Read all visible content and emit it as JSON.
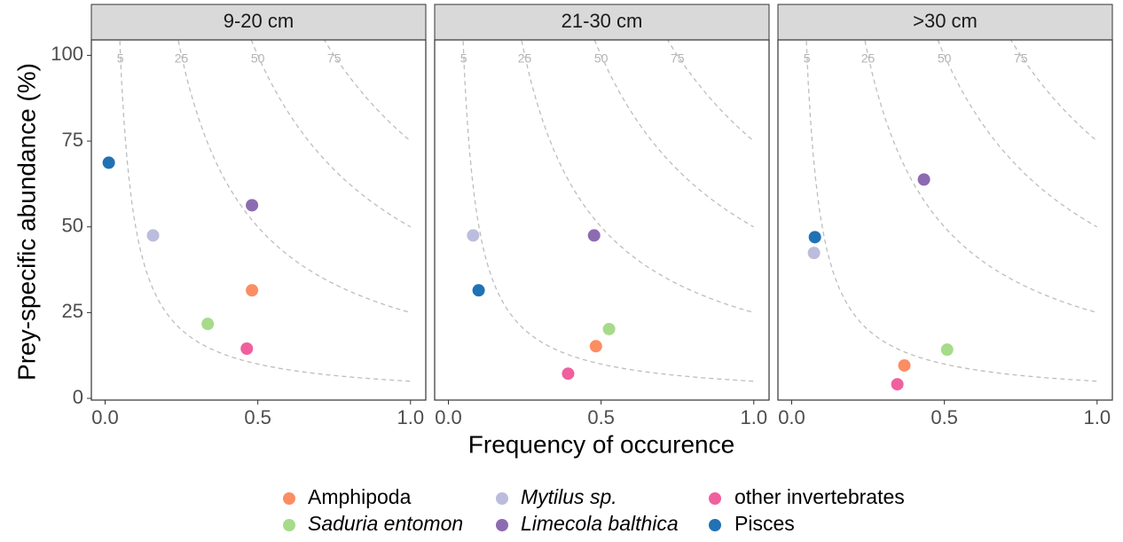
{
  "x_label": "Frequency of occurence",
  "y_label": "Prey-specific abundance (%)",
  "chart_data": [
    {
      "type": "scatter",
      "title": "9-20 cm",
      "xlim": [
        -0.045,
        1.05
      ],
      "ylim": [
        -0.5,
        104.5
      ],
      "xticks": [
        {
          "value": 0,
          "label": "0.0"
        },
        {
          "value": 0.5,
          "label": "0.5"
        },
        {
          "value": 1,
          "label": "1.0"
        }
      ],
      "yticks": [
        0,
        25,
        50,
        75,
        100
      ],
      "isolines": [
        5,
        25,
        50,
        75
      ],
      "series": [
        {
          "name": "Amphipoda",
          "color": "#fc8d62",
          "x": [
            0.481
          ],
          "values": [
            31.5
          ]
        },
        {
          "name": "Saduria entomon",
          "color": "#a6db8a",
          "italic": true,
          "x": [
            0.336
          ],
          "values": [
            21.7
          ]
        },
        {
          "name": "Mytilus sp.",
          "color": "#bcbddc",
          "italic": true,
          "x": [
            0.157
          ],
          "values": [
            47.5
          ]
        },
        {
          "name": "Limecola balthica",
          "color": "#8c6bb1",
          "italic": true,
          "x": [
            0.481
          ],
          "values": [
            56.3
          ]
        },
        {
          "name": "other invertebrates",
          "color": "#f0609e",
          "x": [
            0.464
          ],
          "values": [
            14.5
          ]
        },
        {
          "name": "Pisces",
          "color": "#2171b5",
          "x": [
            0.012
          ],
          "values": [
            68.7
          ]
        }
      ]
    },
    {
      "type": "scatter",
      "title": "21-30 cm",
      "xlim": [
        -0.045,
        1.05
      ],
      "ylim": [
        -0.5,
        104.5
      ],
      "xticks": [
        {
          "value": 0,
          "label": "0.0"
        },
        {
          "value": 0.5,
          "label": "0.5"
        },
        {
          "value": 1,
          "label": "1.0"
        }
      ],
      "isolines": [
        5,
        25,
        50,
        75
      ],
      "series": [
        {
          "name": "Amphipoda",
          "color": "#fc8d62",
          "x": [
            0.483
          ],
          "values": [
            15.2
          ]
        },
        {
          "name": "Saduria entomon",
          "color": "#a6db8a",
          "italic": true,
          "x": [
            0.526
          ],
          "values": [
            20.2
          ]
        },
        {
          "name": "Mytilus sp.",
          "color": "#bcbddc",
          "italic": true,
          "x": [
            0.081
          ],
          "values": [
            47.5
          ]
        },
        {
          "name": "Limecola balthica",
          "color": "#8c6bb1",
          "italic": true,
          "x": [
            0.477
          ],
          "values": [
            47.5
          ]
        },
        {
          "name": "other invertebrates",
          "color": "#f0609e",
          "x": [
            0.392
          ],
          "values": [
            7.2
          ]
        },
        {
          "name": "Pisces",
          "color": "#2171b5",
          "x": [
            0.099
          ],
          "values": [
            31.5
          ]
        }
      ]
    },
    {
      "type": "scatter",
      "title": ">30 cm",
      "xlim": [
        -0.045,
        1.05
      ],
      "ylim": [
        -0.5,
        104.5
      ],
      "xticks": [
        {
          "value": 0,
          "label": "0.0"
        },
        {
          "value": 0.5,
          "label": "0.5"
        },
        {
          "value": 1,
          "label": "1.0"
        }
      ],
      "isolines": [
        5,
        25,
        50,
        75
      ],
      "series": [
        {
          "name": "Amphipoda",
          "color": "#fc8d62",
          "x": [
            0.369
          ],
          "values": [
            9.6
          ]
        },
        {
          "name": "Saduria entomon",
          "color": "#a6db8a",
          "italic": true,
          "x": [
            0.509
          ],
          "values": [
            14.2
          ]
        },
        {
          "name": "Mytilus sp.",
          "color": "#bcbddc",
          "italic": true,
          "x": [
            0.073
          ],
          "values": [
            42.4
          ]
        },
        {
          "name": "Limecola balthica",
          "color": "#8c6bb1",
          "italic": true,
          "x": [
            0.433
          ],
          "values": [
            63.8
          ]
        },
        {
          "name": "other invertebrates",
          "color": "#f0609e",
          "x": [
            0.346
          ],
          "values": [
            4.1
          ]
        },
        {
          "name": "Pisces",
          "color": "#2171b5",
          "x": [
            0.076
          ],
          "values": [
            47.0
          ]
        }
      ]
    }
  ]
}
